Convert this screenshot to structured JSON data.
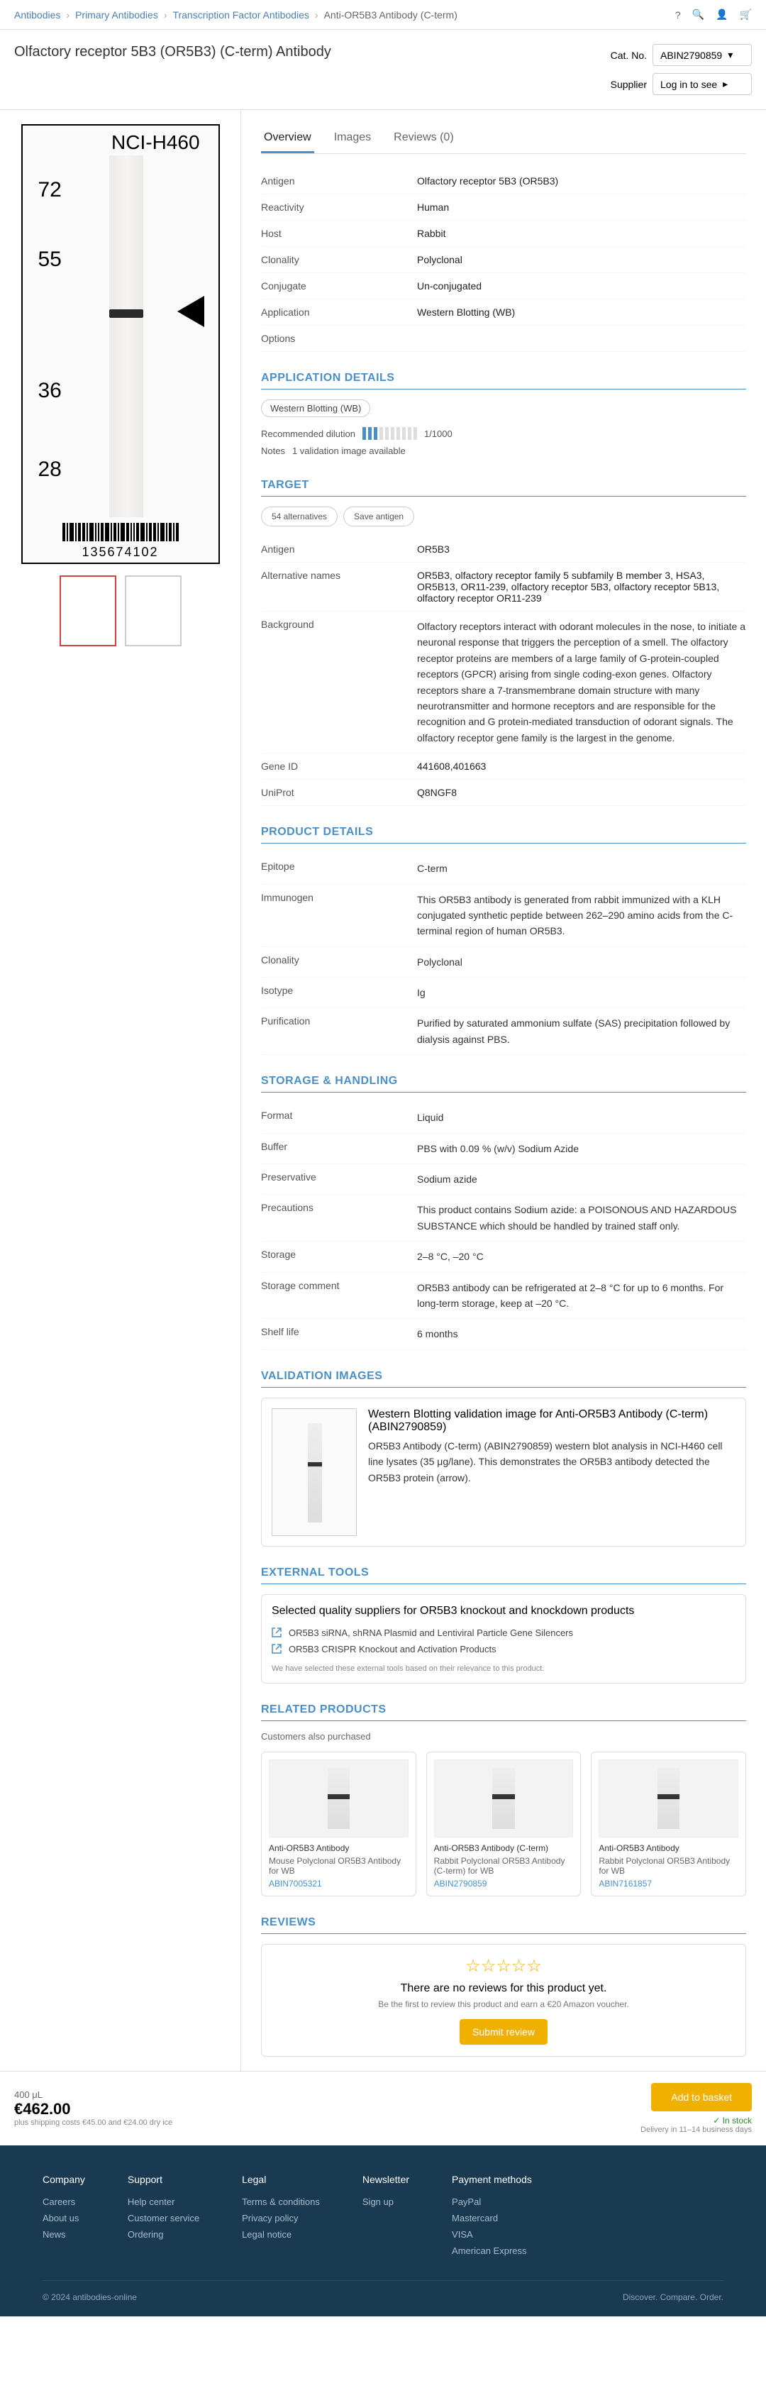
{
  "breadcrumb": {
    "home": "Antibodies",
    "l1": "Primary Antibodies",
    "l2": "Transcription Factor Antibodies",
    "current": "Anti-OR5B3 Antibody (C-term)"
  },
  "topIcons": {
    "help": "?",
    "search": "🔍",
    "user": "👤",
    "cart": "🛒"
  },
  "title": "Olfactory receptor 5B3 (OR5B3) (C-term) Antibody",
  "catNoRow": {
    "label": "Cat. No.",
    "select": "ABIN2790859",
    "chev": "▾"
  },
  "supplierRow": {
    "label": "Supplier",
    "btn": "Log in to see",
    "chev": "▸"
  },
  "blot": {
    "laneLabel": "NCI-H460",
    "mwLabels": [
      {
        "val": "72",
        "topPct": 12
      },
      {
        "val": "55",
        "topPct": 28
      },
      {
        "val": "36",
        "topPct": 58
      },
      {
        "val": "28",
        "topPct": 76
      }
    ],
    "bandTopPct": 42,
    "arrowTopPct": 39,
    "barcodeWidths": [
      2,
      1,
      3,
      1,
      2,
      2,
      1,
      3,
      1,
      1,
      2,
      3,
      1,
      2,
      1,
      3,
      2,
      1,
      1,
      2,
      3,
      1,
      2,
      2,
      1,
      3,
      1,
      2,
      1,
      2
    ],
    "barcodeNum": "135674102"
  },
  "tabs": [
    "Overview",
    "Images",
    "Reviews"
  ],
  "reviewsCount": "0",
  "fields": {
    "antigen": {
      "label": "Antigen",
      "value": "Olfactory receptor 5B3 (OR5B3)"
    },
    "reactivity": {
      "label": "Reactivity",
      "value": "Human"
    },
    "host": {
      "label": "Host",
      "value": "Rabbit"
    },
    "clonality": {
      "label": "Clonality",
      "value": "Polyclonal"
    },
    "conjugate": {
      "label": "Conjugate",
      "value": "Un-conjugated"
    },
    "application": {
      "label": "Application",
      "value": "Western Blotting (WB)"
    },
    "options": {
      "label": "Options",
      "value": ""
    }
  },
  "appDetails": {
    "sectionTitle": "APPLICATION DETAILS",
    "pill": "Western Blotting (WB)",
    "dilution": {
      "label": "Recommended dilution",
      "value": "1/1000"
    },
    "notes": {
      "label": "Notes",
      "value": "1 validation image available"
    }
  },
  "targetSection": {
    "title": "TARGET",
    "buttons": {
      "alts": "54 alternatives",
      "save": "Save antigen"
    },
    "antigenLabel": "Antigen",
    "antigenVal": "OR5B3",
    "altLabel": "Alternative names",
    "altVal": "OR5B3, olfactory receptor family 5 subfamily B member 3, HSA3, OR5B13, OR11-239, olfactory receptor 5B3, olfactory receptor 5B13, olfactory receptor OR11-239",
    "bgLabel": "Background",
    "bgVal": "Olfactory receptors interact with odorant molecules in the nose, to initiate a neuronal response that triggers the perception of a smell. The olfactory receptor proteins are members of a large family of G-protein-coupled receptors (GPCR) arising from single coding-exon genes. Olfactory receptors share a 7-transmembrane domain structure with many neurotransmitter and hormone receptors and are responsible for the recognition and G protein-mediated transduction of odorant signals. The olfactory receptor gene family is the largest in the genome.",
    "idLabel": "Gene ID",
    "idVal": "441608,401663",
    "uniLabel": "UniProt",
    "uniVal": "Q8NGF8"
  },
  "productSection": {
    "title": "PRODUCT DETAILS",
    "rows": [
      {
        "label": "Epitope",
        "value": "C-term"
      },
      {
        "label": "Immunogen",
        "value": "This OR5B3 antibody is generated from rabbit immunized with a KLH conjugated synthetic peptide between 262–290 amino acids from the C-terminal region of human OR5B3."
      },
      {
        "label": "Clonality",
        "value": "Polyclonal"
      },
      {
        "label": "Isotype",
        "value": "Ig"
      },
      {
        "label": "Purification",
        "value": "Purified by saturated ammonium sulfate (SAS) precipitation followed by dialysis against PBS."
      }
    ]
  },
  "storageSection": {
    "title": "STORAGE & HANDLING",
    "rows": [
      {
        "label": "Format",
        "value": "Liquid"
      },
      {
        "label": "Buffer",
        "value": "PBS with 0.09 % (w/v) Sodium Azide"
      },
      {
        "label": "Preservative",
        "value": "Sodium azide"
      },
      {
        "label": "Precautions",
        "value": "This product contains Sodium azide: a POISONOUS AND HAZARDOUS SUBSTANCE which should be handled by trained staff only."
      },
      {
        "label": "Storage",
        "value": "2–8 °C, –20 °C"
      },
      {
        "label": "Storage comment",
        "value": "OR5B3 antibody can be refrigerated at 2–8 °C for up to 6 months. For long-term storage, keep at –20 °C."
      },
      {
        "label": "Shelf life",
        "value": "6 months"
      }
    ]
  },
  "imagesSection": {
    "title": "VALIDATION IMAGES",
    "caption": "Western Blotting validation image for Anti-OR5B3 Antibody (C-term) (ABIN2790859)",
    "desc": "OR5B3 Antibody (C-term) (ABIN2790859) western blot analysis in NCI-H460 cell line lysates (35 μg/lane). This demonstrates the OR5B3 antibody detected the OR5B3 protein (arrow)."
  },
  "extToolsSection": {
    "title": "EXTERNAL TOOLS",
    "boxTitle": "Selected quality suppliers for OR5B3 knockout and knockdown products",
    "rows": [
      "OR5B3 siRNA, shRNA Plasmid and Lentiviral Particle Gene Silencers",
      "OR5B3 CRISPR Knockout and Activation Products"
    ],
    "note": "We have selected these external tools based on their relevance to this product."
  },
  "relatedSection": {
    "title": "RELATED PRODUCTS",
    "subtitle": "Customers also purchased",
    "items": [
      {
        "name": "Anti-OR5B3 Antibody",
        "desc": "Mouse Polyclonal OR5B3 Antibody for WB",
        "cat": "ABIN7005321"
      },
      {
        "name": "Anti-OR5B3 Antibody (C-term)",
        "desc": "Rabbit Polyclonal OR5B3 Antibody (C-term) for WB",
        "cat": "ABIN2790859"
      },
      {
        "name": "Anti-OR5B3 Antibody",
        "desc": "Rabbit Polyclonal OR5B3 Antibody for WB",
        "cat": "ABIN7161857"
      }
    ]
  },
  "reviewsSection": {
    "title": "REVIEWS",
    "emptyText": "There are no reviews for this product yet.",
    "emptySub": "Be the first to review this product and earn a €20 Amazon voucher.",
    "btn": "Submit review"
  },
  "buyBar": {
    "sizeLabel": "400 μL",
    "price": "€462.00",
    "shipping": "plus shipping costs €45.00 and €24.00 dry ice",
    "addBtn": "Add to basket",
    "stock": "In stock",
    "delivery": "Delivery in 11–14 business days"
  },
  "footer": {
    "cols": [
      {
        "title": "Company",
        "links": [
          "Careers",
          "About us",
          "News"
        ]
      },
      {
        "title": "Support",
        "links": [
          "Help center",
          "Customer service",
          "Ordering"
        ]
      },
      {
        "title": "Legal",
        "links": [
          "Terms & conditions",
          "Privacy policy",
          "Legal notice"
        ]
      },
      {
        "title": "Newsletter",
        "links": [
          "Sign up",
          ""
        ]
      },
      {
        "title": "Payment methods",
        "links": [
          "PayPal",
          "Mastercard",
          "VISA",
          "American Express"
        ]
      }
    ],
    "copyright": "© 2024 antibodies-online",
    "tagline": "Discover. Compare. Order."
  },
  "colors": {
    "accent": "#4a8fc7",
    "primaryBtn": "#f0b000",
    "border": "#e0e0e0",
    "text": "#333333",
    "footerBg": "#1a3a52"
  }
}
